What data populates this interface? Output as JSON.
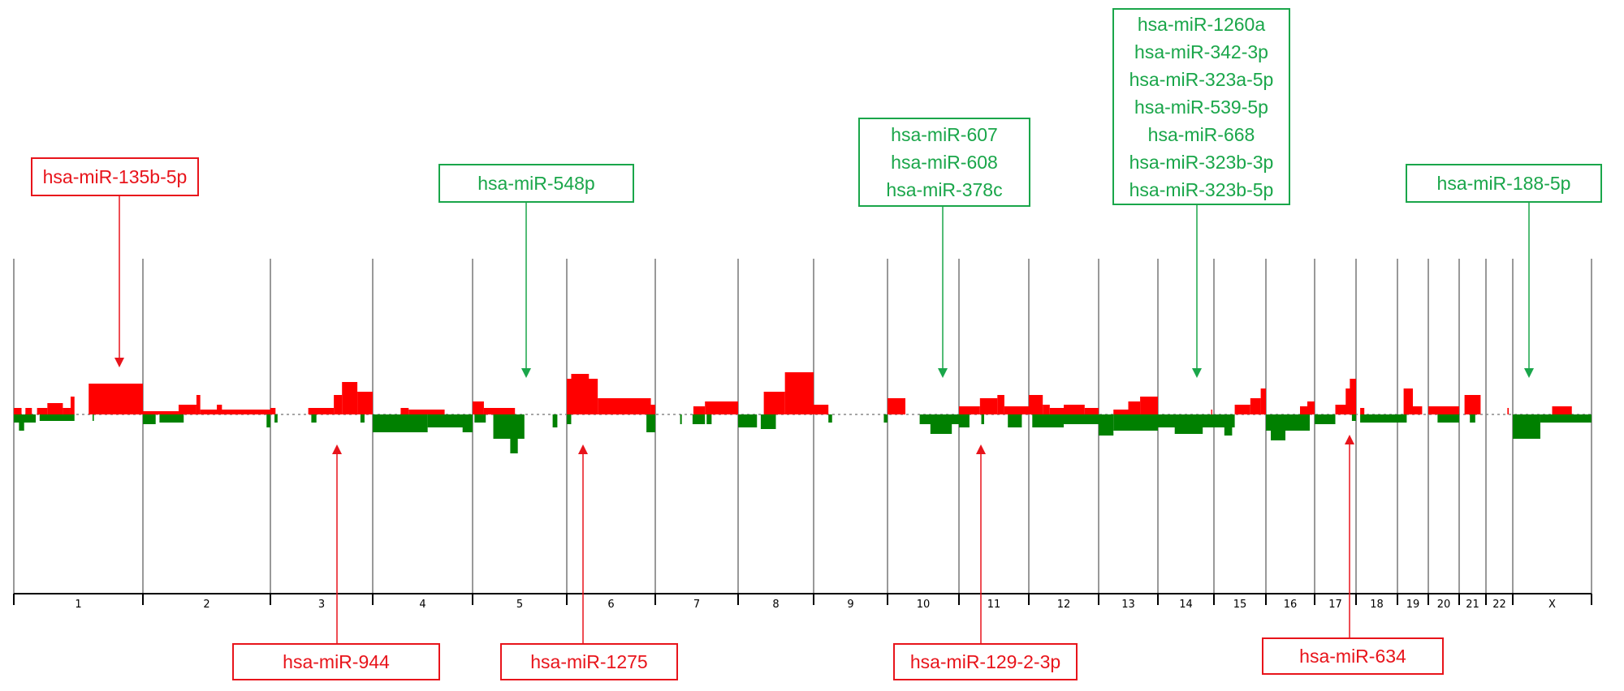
{
  "chart_data": {
    "type": "bar",
    "title": "",
    "xlabel": "",
    "ylabel": "",
    "ylim": [
      -100,
      100
    ],
    "grid": false,
    "colors": {
      "gain": "#ff0000",
      "loss": "#008000",
      "up_annotation": "#1aa64a",
      "down_annotation": "#e8141b",
      "chromosome_divider": "#999999"
    },
    "chromosomes": [
      "1",
      "2",
      "3",
      "4",
      "5",
      "6",
      "7",
      "8",
      "9",
      "10",
      "11",
      "12",
      "13",
      "14",
      "15",
      "16",
      "17",
      "18",
      "19",
      "20",
      "21",
      "22",
      "X"
    ],
    "segments": {
      "1": {
        "gain": [
          [
            0,
            0.06,
            4
          ],
          [
            0.09,
            0.14,
            4
          ],
          [
            0.18,
            0.26,
            4
          ],
          [
            0.26,
            0.38,
            7
          ],
          [
            0.38,
            0.44,
            4
          ],
          [
            0.44,
            0.47,
            11
          ],
          [
            0.58,
            1,
            19
          ]
        ],
        "loss": [
          [
            0,
            0.17,
            -5
          ],
          [
            0.04,
            0.08,
            -10
          ],
          [
            0.2,
            0.47,
            -4
          ],
          [
            0.61,
            0.62,
            -4
          ]
        ]
      },
      "2": {
        "gain": [
          [
            0,
            0.28,
            2
          ],
          [
            0.28,
            0.42,
            6
          ],
          [
            0.42,
            0.45,
            12
          ],
          [
            0.45,
            1,
            3
          ],
          [
            0.58,
            0.62,
            6
          ]
        ],
        "loss": [
          [
            0,
            0.1,
            -6
          ],
          [
            0.13,
            0.32,
            -5
          ],
          [
            0.97,
            1,
            -8
          ]
        ]
      },
      "3": {
        "gain": [
          [
            0,
            0.05,
            4
          ],
          [
            0.37,
            0.62,
            4
          ],
          [
            0.62,
            0.7,
            12
          ],
          [
            0.7,
            0.85,
            20
          ],
          [
            0.85,
            1,
            14
          ]
        ],
        "loss": [
          [
            0.04,
            0.07,
            -5
          ],
          [
            0.4,
            0.45,
            -5
          ],
          [
            0.88,
            0.92,
            -5
          ]
        ]
      },
      "4": {
        "gain": [
          [
            0.28,
            0.36,
            4
          ],
          [
            0.36,
            0.72,
            3
          ]
        ],
        "loss": [
          [
            0,
            0.55,
            -11
          ],
          [
            0.55,
            1,
            -8
          ],
          [
            0.9,
            1,
            -11
          ]
        ]
      },
      "5": {
        "gain": [
          [
            0,
            0.12,
            8
          ],
          [
            0.12,
            0.45,
            4
          ]
        ],
        "loss": [
          [
            0.02,
            0.14,
            -5
          ],
          [
            0.22,
            0.55,
            -15
          ],
          [
            0.4,
            0.48,
            -24
          ],
          [
            0.85,
            0.9,
            -8
          ]
        ]
      },
      "6": {
        "gain": [
          [
            0,
            0.35,
            22
          ],
          [
            0.05,
            0.25,
            25
          ],
          [
            0.35,
            0.95,
            10
          ],
          [
            0.95,
            1,
            6
          ]
        ],
        "loss": [
          [
            0,
            0.05,
            -6
          ],
          [
            0.9,
            1,
            -11
          ]
        ]
      },
      "7": {
        "gain": [
          [
            0.46,
            0.6,
            5
          ],
          [
            0.6,
            1,
            8
          ]
        ],
        "loss": [
          [
            0.3,
            0.32,
            -6
          ],
          [
            0.45,
            0.6,
            -6
          ],
          [
            0.62,
            0.68,
            -6
          ]
        ]
      },
      "8": {
        "gain": [
          [
            0.34,
            0.62,
            14
          ],
          [
            0.62,
            1,
            26
          ]
        ],
        "loss": [
          [
            0,
            0.25,
            -8
          ],
          [
            0.3,
            0.5,
            -9
          ]
        ]
      },
      "9": {
        "gain": [
          [
            0,
            0.2,
            6
          ]
        ],
        "loss": [
          [
            0.2,
            0.25,
            -5
          ],
          [
            0.95,
            1,
            -5
          ]
        ]
      },
      "10": {
        "gain": [
          [
            0,
            0.25,
            10
          ]
        ],
        "loss": [
          [
            0.45,
            1,
            -6
          ],
          [
            0.6,
            0.9,
            -12
          ]
        ]
      },
      "11": {
        "gain": [
          [
            0,
            0.3,
            5
          ],
          [
            0.3,
            0.55,
            10
          ],
          [
            0.55,
            0.65,
            12
          ],
          [
            0.65,
            1,
            5
          ]
        ],
        "loss": [
          [
            0,
            0.15,
            -8
          ],
          [
            0.32,
            0.36,
            -6
          ],
          [
            0.7,
            0.9,
            -8
          ]
        ]
      },
      "12": {
        "gain": [
          [
            0,
            0.2,
            12
          ],
          [
            0.2,
            0.3,
            6
          ],
          [
            0.3,
            0.5,
            4
          ],
          [
            0.5,
            0.8,
            6
          ],
          [
            0.8,
            1,
            4
          ]
        ],
        "loss": [
          [
            0.05,
            0.5,
            -8
          ],
          [
            0.5,
            1,
            -6
          ]
        ]
      },
      "13": {
        "gain": [
          [
            0.25,
            0.5,
            3
          ],
          [
            0.5,
            0.7,
            8
          ],
          [
            0.7,
            1,
            11
          ]
        ],
        "loss": [
          [
            0,
            0.25,
            -13
          ],
          [
            0.25,
            1,
            -10
          ]
        ]
      },
      "14": {
        "gain": [
          [
            0.95,
            0.97,
            3
          ]
        ],
        "loss": [
          [
            0,
            1,
            -8
          ],
          [
            0.3,
            0.8,
            -12
          ]
        ]
      },
      "15": {
        "gain": [
          [
            0.4,
            0.7,
            6
          ],
          [
            0.7,
            0.9,
            10
          ],
          [
            0.9,
            1,
            16
          ]
        ],
        "loss": [
          [
            0,
            0.4,
            -8
          ],
          [
            0.2,
            0.35,
            -13
          ]
        ]
      },
      "16": {
        "gain": [
          [
            0.7,
            0.85,
            5
          ],
          [
            0.85,
            1,
            8
          ]
        ],
        "loss": [
          [
            0,
            0.9,
            -10
          ],
          [
            0.1,
            0.4,
            -16
          ]
        ]
      },
      "17": {
        "gain": [
          [
            0.5,
            0.8,
            6
          ],
          [
            0.75,
            1,
            16
          ],
          [
            0.85,
            1,
            22
          ]
        ],
        "loss": [
          [
            0,
            0.5,
            -6
          ],
          [
            0.9,
            1,
            -4
          ]
        ]
      },
      "18": {
        "gain": [
          [
            0.1,
            0.2,
            4
          ]
        ],
        "loss": [
          [
            0.1,
            1,
            -5
          ]
        ]
      },
      "19": {
        "gain": [
          [
            0.2,
            0.5,
            16
          ],
          [
            0.5,
            0.8,
            5
          ]
        ],
        "loss": [
          [
            0,
            0.3,
            -5
          ]
        ]
      },
      "20": {
        "gain": [
          [
            0,
            1,
            5
          ]
        ],
        "loss": [
          [
            0.3,
            1,
            -5
          ]
        ]
      },
      "21": {
        "gain": [
          [
            0.2,
            0.8,
            12
          ]
        ],
        "loss": [
          [
            0.4,
            0.6,
            -5
          ]
        ]
      },
      "22": {
        "gain": [
          [
            0.8,
            0.85,
            4
          ]
        ],
        "loss": []
      },
      "X": {
        "gain": [
          [
            0.5,
            0.75,
            5
          ]
        ],
        "loss": [
          [
            0,
            0.35,
            -15
          ],
          [
            0.35,
            1,
            -5
          ]
        ]
      }
    },
    "annotations": [
      {
        "color": "red",
        "labels": [
          "hsa-miR-135b-5p"
        ]
      },
      {
        "color": "green",
        "labels": [
          "hsa-miR-548p"
        ]
      },
      {
        "color": "green",
        "labels": [
          "hsa-miR-607",
          "hsa-miR-608",
          "hsa-miR-378c"
        ]
      },
      {
        "color": "green",
        "labels": [
          "hsa-miR-1260a",
          "hsa-miR-342-3p",
          "hsa-miR-323a-5p",
          "hsa-miR-539-5p",
          "hsa-miR-668",
          "hsa-miR-323b-3p",
          "hsa-miR-323b-5p"
        ]
      },
      {
        "color": "green",
        "labels": [
          "hsa-miR-188-5p"
        ]
      },
      {
        "color": "red",
        "labels": [
          "hsa-miR-944"
        ]
      },
      {
        "color": "red",
        "labels": [
          "hsa-miR-1275"
        ]
      },
      {
        "color": "red",
        "labels": [
          "hsa-miR-129-2-3p"
        ]
      },
      {
        "color": "red",
        "labels": [
          "hsa-miR-634"
        ]
      }
    ]
  }
}
